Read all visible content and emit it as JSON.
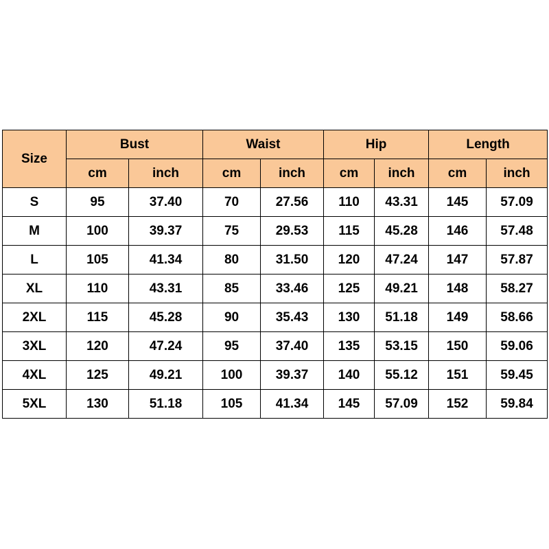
{
  "table": {
    "size_header": "Size",
    "groups": [
      "Bust",
      "Waist",
      "Hip",
      "Length"
    ],
    "subheaders": [
      "cm",
      "inch",
      "cm",
      "inch",
      "cm",
      "inch",
      "cm",
      "inch"
    ],
    "rows": [
      [
        "S",
        "95",
        "37.40",
        "70",
        "27.56",
        "110",
        "43.31",
        "145",
        "57.09"
      ],
      [
        "M",
        "100",
        "39.37",
        "75",
        "29.53",
        "115",
        "45.28",
        "146",
        "57.48"
      ],
      [
        "L",
        "105",
        "41.34",
        "80",
        "31.50",
        "120",
        "47.24",
        "147",
        "57.87"
      ],
      [
        "XL",
        "110",
        "43.31",
        "85",
        "33.46",
        "125",
        "49.21",
        "148",
        "58.27"
      ],
      [
        "2XL",
        "115",
        "45.28",
        "90",
        "35.43",
        "130",
        "51.18",
        "149",
        "58.66"
      ],
      [
        "3XL",
        "120",
        "47.24",
        "95",
        "37.40",
        "135",
        "53.15",
        "150",
        "59.06"
      ],
      [
        "4XL",
        "125",
        "49.21",
        "100",
        "39.37",
        "140",
        "55.12",
        "151",
        "59.45"
      ],
      [
        "5XL",
        "130",
        "51.18",
        "105",
        "41.34",
        "145",
        "57.09",
        "152",
        "59.84"
      ]
    ]
  }
}
